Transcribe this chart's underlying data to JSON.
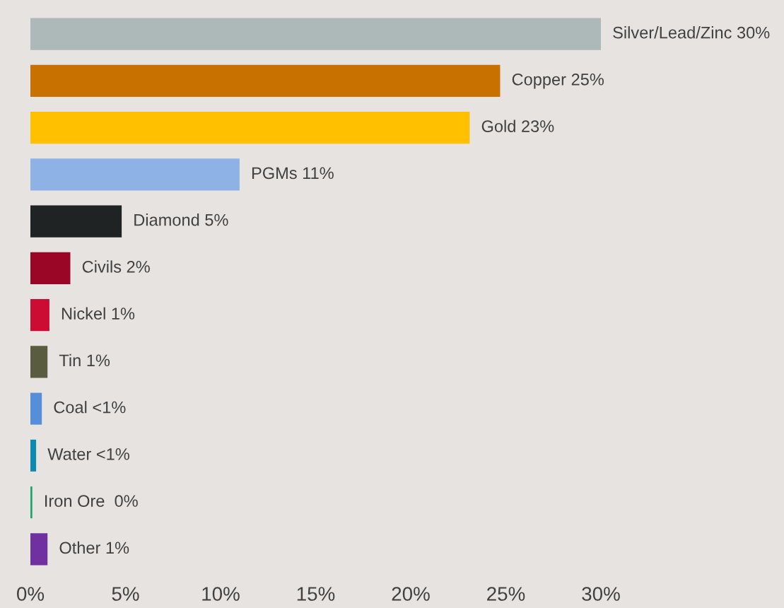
{
  "chart_data": {
    "type": "bar",
    "orientation": "horizontal",
    "categories": [
      "Silver/Lead/Zinc",
      "Copper",
      "Gold",
      "PGMs",
      "Diamond",
      "Civils",
      "Nickel",
      "Tin",
      "Coal",
      "Water",
      "Iron Ore ",
      "Other"
    ],
    "values": [
      30,
      24.7,
      23.1,
      11.0,
      4.8,
      2.1,
      1.0,
      0.9,
      0.6,
      0.3,
      0.1,
      0.9
    ],
    "colors": [
      "#adb8b9",
      "#c87000",
      "#ffc000",
      "#8eb1e6",
      "#1f2324",
      "#9a0726",
      "#cc0c33",
      "#5a5c40",
      "#558ed9",
      "#0b8bb0",
      "#19a668",
      "#7030a0"
    ],
    "value_labels": [
      "30%",
      "25%",
      "23%",
      "11%",
      "5%",
      "2%",
      "1%",
      "1%",
      "<1%",
      "<1%",
      "0%",
      "1%"
    ],
    "xlim": [
      0,
      30
    ],
    "xticks": [
      {
        "value": 0,
        "label": "0%"
      },
      {
        "value": 5,
        "label": "5%"
      },
      {
        "value": 10,
        "label": "10%"
      },
      {
        "value": 15,
        "label": "15%"
      },
      {
        "value": 20,
        "label": "20%"
      },
      {
        "value": 25,
        "label": "25%"
      },
      {
        "value": 30,
        "label": "30%"
      }
    ],
    "grid": false,
    "legend": false
  }
}
